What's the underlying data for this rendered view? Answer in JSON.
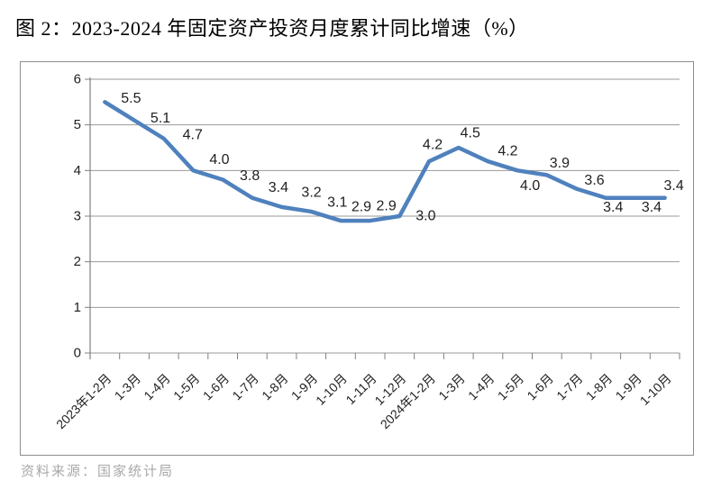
{
  "title": "图 2：2023-2024 年固定资产投资月度累计同比增速（%）",
  "source": "资料来源：国家统计局",
  "chart_data": {
    "type": "line",
    "title": "图 2：2023-2024 年固定资产投资月度累计同比增速（%）",
    "categories": [
      "2023年1-2月",
      "1-3月",
      "1-4月",
      "1-5月",
      "1-6月",
      "1-7月",
      "1-8月",
      "1-9月",
      "1-10月",
      "1-11月",
      "1-12月",
      "2024年1-2月",
      "1-3月",
      "1-4月",
      "1-5月",
      "1-6月",
      "1-7月",
      "1-8月",
      "1-9月",
      "1-10月"
    ],
    "values": [
      5.5,
      5.1,
      4.7,
      4.0,
      3.8,
      3.4,
      3.2,
      3.1,
      2.9,
      2.9,
      3.0,
      4.2,
      4.5,
      4.2,
      4.0,
      3.9,
      3.6,
      3.4,
      3.4,
      3.4
    ],
    "ylim": [
      0,
      6
    ],
    "ytick_interval": 1,
    "ytick_labels": [
      "0",
      "1",
      "2",
      "3",
      "4",
      "5",
      "6"
    ],
    "xlabel": "",
    "ylabel": "",
    "grid": true,
    "legend_position": "none",
    "data_labels": true,
    "label_decimals": 1,
    "line_color": "#4F81BD",
    "grid_color": "#999999",
    "axis_color": "#808080",
    "text_color": "#1f1f1f"
  }
}
